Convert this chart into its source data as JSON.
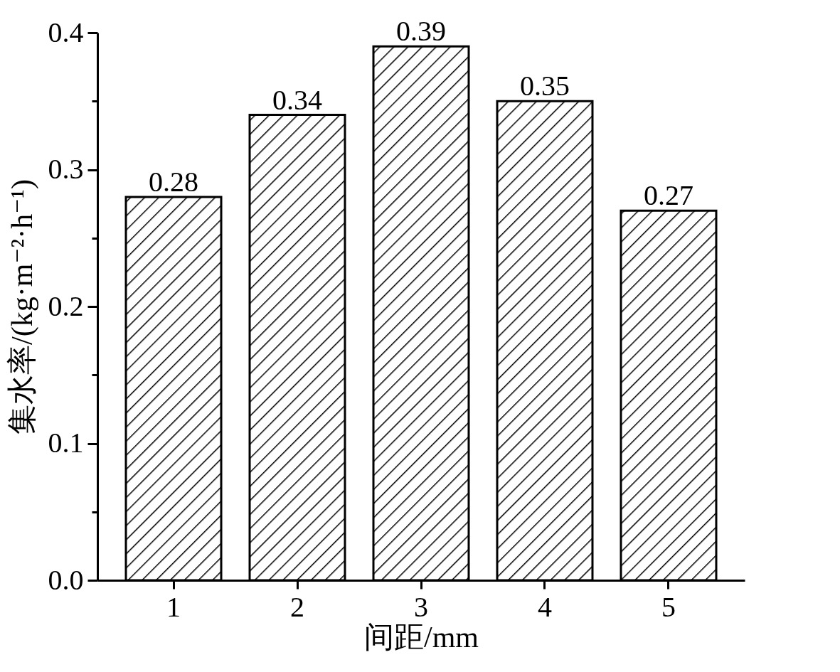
{
  "chart_data": {
    "type": "bar",
    "xlabel": "间距/mm",
    "ylabel": "集水率/(kg·m⁻²·h⁻¹)",
    "categories": [
      "1",
      "2",
      "3",
      "4",
      "5"
    ],
    "values": [
      0.28,
      0.34,
      0.39,
      0.35,
      0.27
    ],
    "color": "#000000",
    "ylim": [
      0,
      0.4
    ],
    "yticks": [
      {
        "value": 0,
        "label": "0.0"
      },
      {
        "value": 0.05,
        "label": null
      },
      {
        "value": 0.1,
        "label": "0.1"
      },
      {
        "value": 0.15,
        "label": null
      },
      {
        "value": 0.2,
        "label": "0.2"
      },
      {
        "value": 0.25,
        "label": null
      },
      {
        "value": 0.3,
        "label": "0.3"
      },
      {
        "value": 0.35,
        "label": null
      },
      {
        "value": 0.4,
        "label": "0.4"
      }
    ],
    "data_labels": true,
    "grid": false
  }
}
